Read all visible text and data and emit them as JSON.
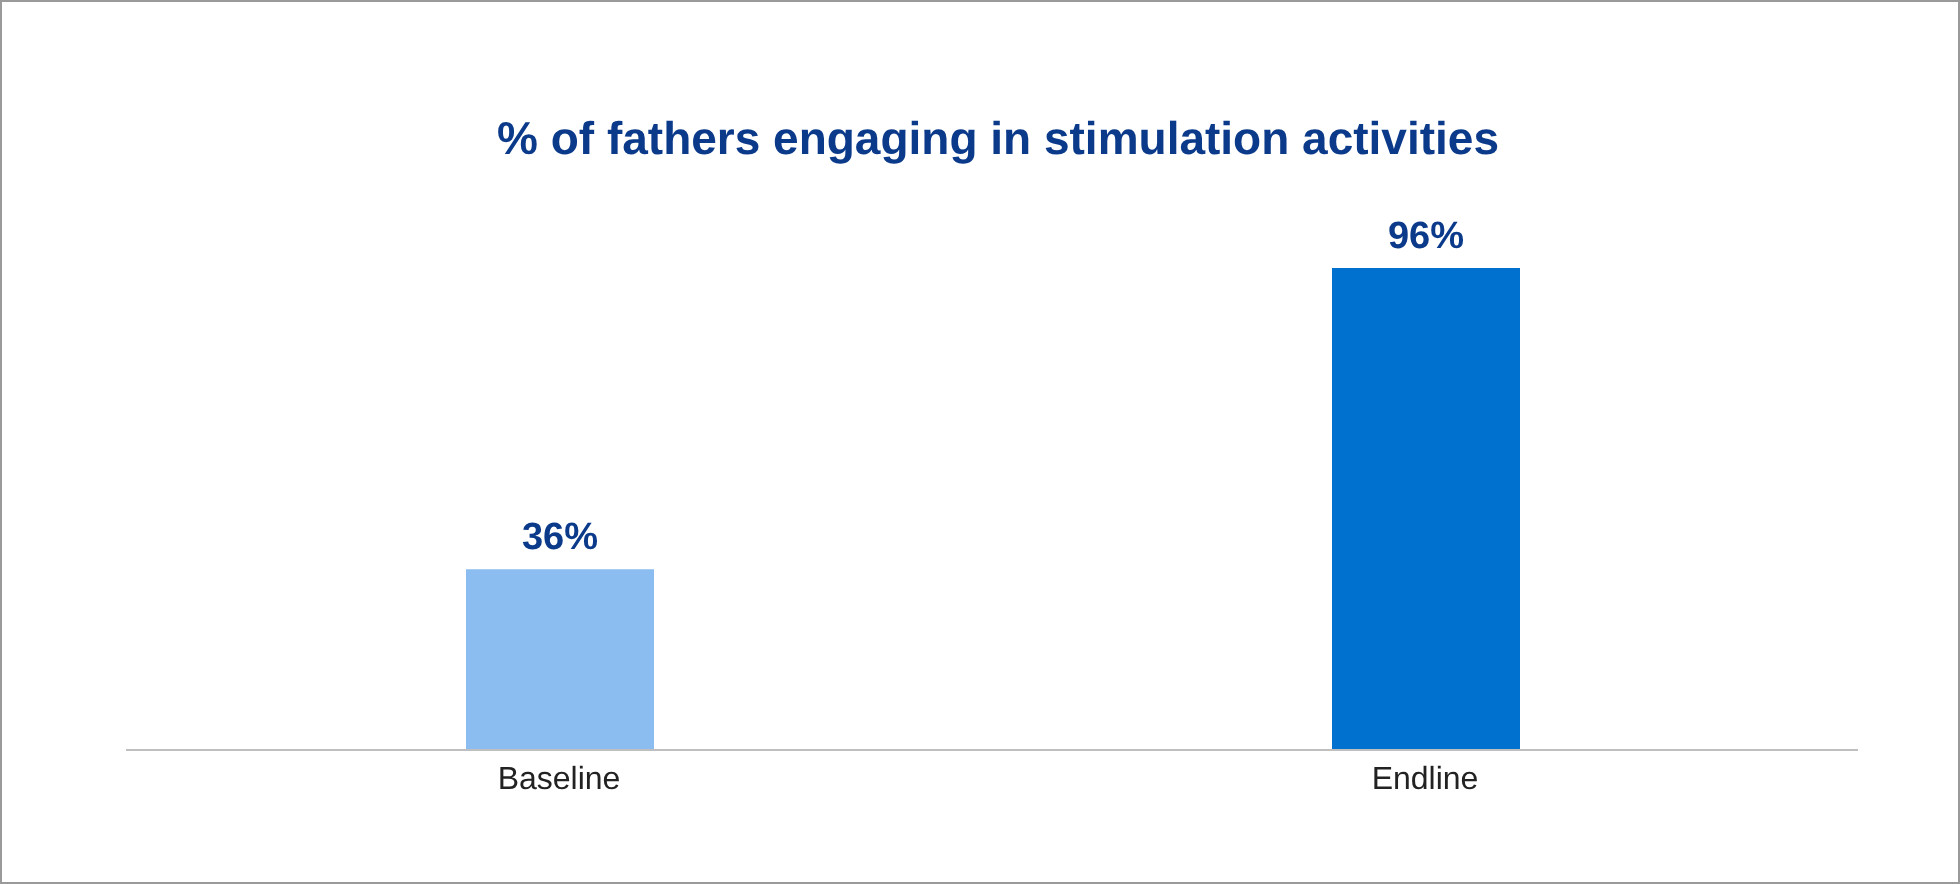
{
  "chart_data": {
    "type": "bar",
    "title": "% of fathers engaging in stimulation activities",
    "categories": [
      "Baseline",
      "Endline"
    ],
    "values": [
      36,
      96
    ],
    "colors": [
      "#8bbdf1",
      "#0071cf"
    ],
    "value_labels": [
      "36%",
      "96%"
    ]
  }
}
